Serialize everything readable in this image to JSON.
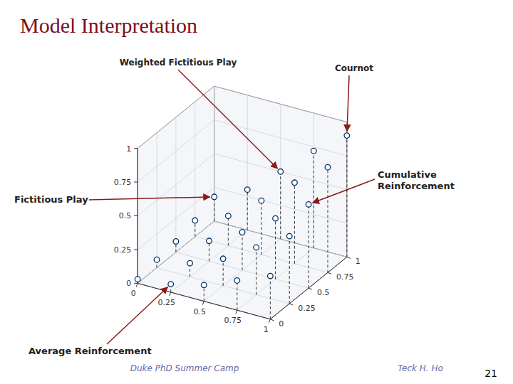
{
  "chart_data": {
    "type": "scatter3d",
    "title": "Model Interpretation",
    "x": [
      0.0,
      0.25,
      0.5,
      0.75,
      1.0,
      0.0,
      0.25,
      0.5,
      0.75,
      1.0,
      0.0,
      0.25,
      0.5,
      0.75,
      1.0,
      0.0,
      0.25,
      0.5,
      0.75,
      1.0,
      0.0,
      0.25,
      0.5,
      0.75,
      1.0
    ],
    "y": [
      0.0,
      0.0,
      0.0,
      0.0,
      0.0,
      0.25,
      0.25,
      0.25,
      0.25,
      0.25,
      0.5,
      0.5,
      0.5,
      0.5,
      0.5,
      0.75,
      0.75,
      0.75,
      0.75,
      0.75,
      1.0,
      1.0,
      1.0,
      1.0,
      1.0
    ],
    "z": [
      0.03,
      0.06,
      0.12,
      0.22,
      0.32,
      0.06,
      0.1,
      0.2,
      0.35,
      0.5,
      0.08,
      0.15,
      0.28,
      0.45,
      0.62,
      0.12,
      0.22,
      0.4,
      0.6,
      0.78,
      0.18,
      0.3,
      0.5,
      0.72,
      0.9
    ],
    "xlim": [
      0,
      1
    ],
    "ylim": [
      0,
      1
    ],
    "zlim": [
      0,
      1
    ],
    "xticks": [
      0,
      0.25,
      0.5,
      0.75,
      1
    ],
    "yticks": [
      0,
      0.25,
      0.5,
      0.75,
      1
    ],
    "zticks": [
      0,
      0.25,
      0.5,
      0.75,
      1
    ],
    "grid": true,
    "color": "#003060",
    "marker": "circle",
    "line_style": "dashed",
    "annotations": [
      "Weighted Fictitious Play",
      "Cournot",
      "Fictitious Play",
      "Cumulative\nReinforcement",
      "Average Reinforcement"
    ],
    "footer": [
      "Duke PhD Summer Camp",
      "Teck H. Ho"
    ],
    "page_number": "21"
  }
}
